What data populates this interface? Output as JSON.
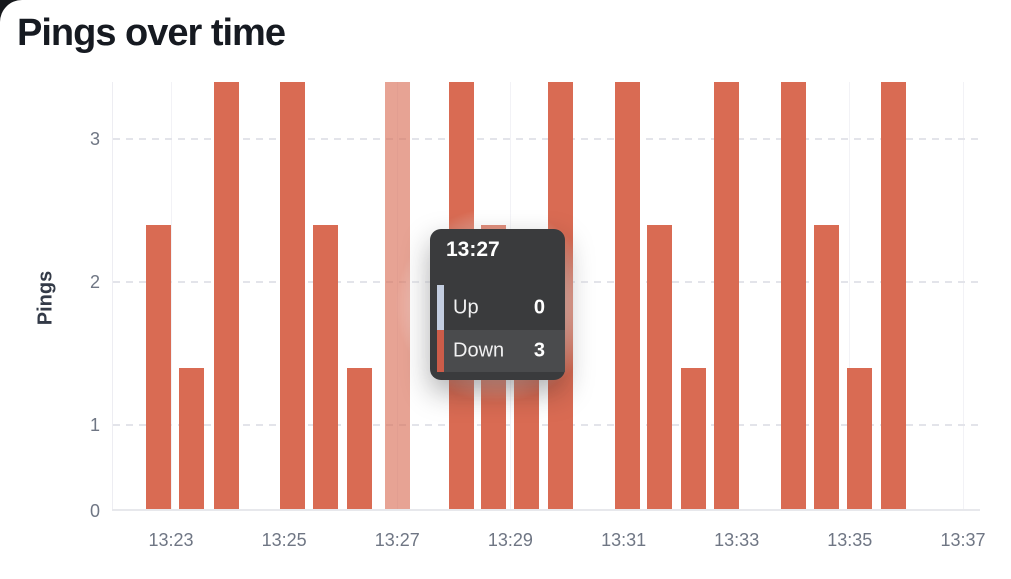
{
  "page": {
    "title": "Pings over time"
  },
  "colors": {
    "background": "#ffffff",
    "window_corner": "#17191d",
    "bar": "#d96b53",
    "hovered_bar_opacity": 0.62,
    "grid_dash": "#e3e4ea",
    "axis_line": "#e7e8ec",
    "tick_text": "#6f7684",
    "tooltip_bg": "#3a3b3d",
    "tooltip_row_highlight": "#4a4b4d",
    "up_marker": "#c3cde0",
    "down_marker": "#cc5c49"
  },
  "chart_data": {
    "type": "bar",
    "stacked": true,
    "title": "Pings over time",
    "ylabel": "Pings",
    "xlabel": "",
    "grid": true,
    "y_ticks": [
      0,
      1,
      2,
      3
    ],
    "ylim": [
      0,
      3.4
    ],
    "x_ticks": [
      "13:23",
      "13:25",
      "13:27",
      "13:29",
      "13:31",
      "13:33",
      "13:35",
      "13:37"
    ],
    "series_names": [
      "Up",
      "Down"
    ],
    "hovered_time": "13:27",
    "bars": [
      {
        "time": "13:22:47",
        "up": 0,
        "down": 2
      },
      {
        "time": "13:23:22",
        "up": 0,
        "down": 1
      },
      {
        "time": "13:23:59",
        "up": 0,
        "down": 3
      },
      {
        "time": "13:25:09",
        "up": 0,
        "down": 3
      },
      {
        "time": "13:25:44",
        "up": 0,
        "down": 2
      },
      {
        "time": "13:26:20",
        "up": 0,
        "down": 1
      },
      {
        "time": "13:27:00",
        "up": 0,
        "down": 3,
        "hovered": true
      },
      {
        "time": "13:28:08",
        "up": 0,
        "down": 3
      },
      {
        "time": "13:28:42",
        "up": 0,
        "down": 2
      },
      {
        "time": "13:29:17",
        "up": 0,
        "down": 1
      },
      {
        "time": "13:29:53",
        "up": 0,
        "down": 3
      },
      {
        "time": "13:31:04",
        "up": 0,
        "down": 3
      },
      {
        "time": "13:31:38",
        "up": 0,
        "down": 2
      },
      {
        "time": "13:32:14",
        "up": 0,
        "down": 1
      },
      {
        "time": "13:32:49",
        "up": 0,
        "down": 3
      },
      {
        "time": "13:34:00",
        "up": 0,
        "down": 3
      },
      {
        "time": "13:34:35",
        "up": 0,
        "down": 2
      },
      {
        "time": "13:35:10",
        "up": 0,
        "down": 1
      },
      {
        "time": "13:35:46",
        "up": 0,
        "down": 3
      }
    ]
  },
  "tooltip": {
    "title": "13:27",
    "rows": [
      {
        "label": "Up",
        "value": "0",
        "marker_color": "#c3cde0",
        "highlighted": false
      },
      {
        "label": "Down",
        "value": "3",
        "marker_color": "#cc5c49",
        "highlighted": true
      }
    ]
  }
}
